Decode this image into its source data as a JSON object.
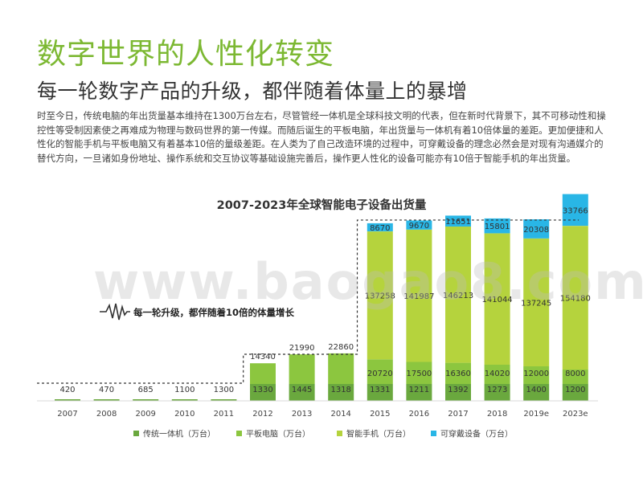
{
  "header": {
    "title": "数字世界的人性化转变",
    "subtitle": "每一轮数字产品的升级，都伴随着体量上的暴增"
  },
  "intro_text": "时至今日，传统电脑的年出货量基本维持在1300万台左右，尽管管经一体机是全球科技文明的代表，但在新时代背景下，其不可移动性和操控性等受制因素使之再难成为物理与数码世界的第一传媒。而随后诞生的平板电脑，年出货量与一体机有着10倍体量的差距。更加便捷和人性化的智能手机与平板电脑又有着基本10倍的量级差距。在人类为了自己改造环境的过程中，可穿戴设备的理念必然会是对现有沟通媒介的替代方向，一旦诸如身份地址、操作系统和交互协议等基础设施完善后，操作更人性化的设备可能亦有10倍于智能手机的年出货量。",
  "watermark": "www.baogao8.com",
  "colors": {
    "traditional": "#6aa83e",
    "tablet": "#8cc63f",
    "smartphone": "#b5d33d",
    "wearable": "#29b6e6",
    "title": "#7cb832",
    "dashed": "#333333"
  },
  "chart_data": {
    "type": "bar",
    "stacked": true,
    "title": "2007-2023年全球智能电子设备出货量",
    "categories": [
      "2007",
      "2008",
      "2009",
      "2010",
      "2011",
      "2012",
      "2013",
      "2014",
      "2015",
      "2016",
      "2017",
      "2018",
      "2019e",
      "2023e"
    ],
    "series": [
      {
        "name": "传统一体机（万台）",
        "values": [
          420,
          470,
          685,
          1100,
          1300,
          1330,
          1445,
          1318,
          1331,
          1211,
          1392,
          1273,
          1400,
          1200
        ]
      },
      {
        "name": "平板电脑（万台）",
        "values": [
          null,
          null,
          null,
          null,
          null,
          14340,
          21990,
          22860,
          20720,
          17500,
          16360,
          14020,
          12000,
          8000
        ]
      },
      {
        "name": "智能手机（万台）",
        "values": [
          null,
          null,
          null,
          null,
          null,
          null,
          null,
          null,
          137258,
          141987,
          146213,
          141044,
          137245,
          154180
        ]
      },
      {
        "name": "可穿戴设备（万台）",
        "values": [
          null,
          null,
          null,
          null,
          null,
          null,
          null,
          null,
          8670,
          9670,
          11651,
          15801,
          20308,
          33766
        ]
      }
    ],
    "annotation": "每一轮升级，都伴随着10倍的体量增长"
  }
}
